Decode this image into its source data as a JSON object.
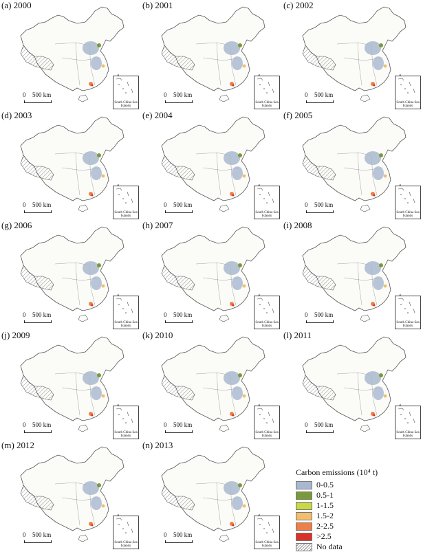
{
  "panels": [
    {
      "label": "(a) 2000"
    },
    {
      "label": "(b) 2001"
    },
    {
      "label": "(c) 2002"
    },
    {
      "label": "(d) 2003"
    },
    {
      "label": "(e) 2004"
    },
    {
      "label": "(f) 2005"
    },
    {
      "label": "(g) 2006"
    },
    {
      "label": "(h) 2007"
    },
    {
      "label": "(i) 2008"
    },
    {
      "label": "(j) 2009"
    },
    {
      "label": "(k) 2010"
    },
    {
      "label": "(l) 2011"
    },
    {
      "label": "(m) 2012"
    },
    {
      "label": "(n) 2013"
    }
  ],
  "scale_bar": {
    "zero": "0",
    "distance": "500 km"
  },
  "inset_label": "South China Sea Islands",
  "legend": {
    "title": "Carbon emissions (10⁴ t)",
    "items": [
      {
        "label": "0-0.5",
        "color": "#a8b8cf"
      },
      {
        "label": "0.5-1",
        "color": "#7a9a3a"
      },
      {
        "label": "1-1.5",
        "color": "#c9d84a"
      },
      {
        "label": "1.5-2",
        "color": "#f2bd6c"
      },
      {
        "label": "2-2.5",
        "color": "#ec8048"
      },
      {
        "label": ">2.5",
        "color": "#d93228"
      },
      {
        "label": "No data",
        "color": "hatch"
      }
    ]
  }
}
